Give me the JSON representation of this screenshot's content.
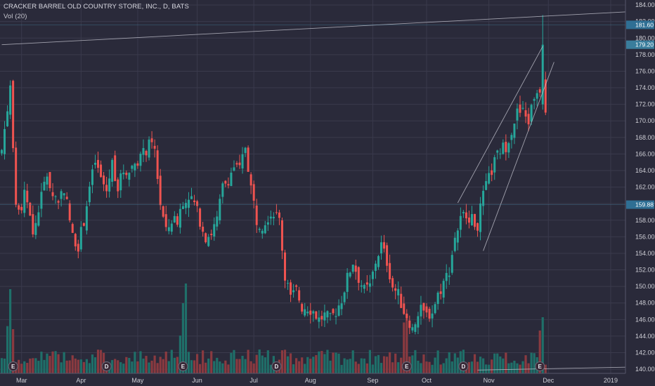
{
  "header": {
    "title": "CRACKER BARREL OLD COUNTRY STORE, INC., D, BATS",
    "volume_indicator": "Vol (20)"
  },
  "colors": {
    "background": "#2a2a3a",
    "up": "#26a69a",
    "down": "#ef5350",
    "up_volume": "#1f6f69",
    "down_volume": "#8a3a40",
    "grid": "#3a3a4c",
    "trendline": "#c9c9d4",
    "tag_up": "#3a7d9c",
    "tag_mid": "#2f6f94"
  },
  "chart_data": {
    "type": "candlestick",
    "ylim": [
      139.5,
      184.6
    ],
    "y_ticks": [
      "140.00",
      "142.00",
      "144.00",
      "146.00",
      "148.00",
      "150.00",
      "152.00",
      "154.00",
      "156.00",
      "158.00",
      "160.00",
      "162.00",
      "164.00",
      "166.00",
      "168.00",
      "170.00",
      "172.00",
      "174.00",
      "176.00",
      "178.00",
      "180.00",
      "182.00",
      "184.00"
    ],
    "x_ticks": [
      {
        "label": "Mar",
        "bar": 7
      },
      {
        "label": "Apr",
        "bar": 28
      },
      {
        "label": "May",
        "bar": 48
      },
      {
        "label": "Jun",
        "bar": 69
      },
      {
        "label": "Jul",
        "bar": 89
      },
      {
        "label": "Aug",
        "bar": 109
      },
      {
        "label": "Sep",
        "bar": 131
      },
      {
        "label": "Oct",
        "bar": 150
      },
      {
        "label": "Nov",
        "bar": 172
      },
      {
        "label": "Dec",
        "bar": 193
      },
      {
        "label": "2019",
        "bar": 215
      }
    ],
    "price_tags": [
      {
        "label": "181.60",
        "price": 181.6,
        "kind": "upper_line"
      },
      {
        "label": "179.20",
        "price": 179.2,
        "kind": "last"
      },
      {
        "label": "159.88",
        "price": 159.88,
        "kind": "mid_line"
      }
    ],
    "events": [
      {
        "label": "E",
        "bar": 4
      },
      {
        "label": "D",
        "bar": 37
      },
      {
        "label": "E",
        "bar": 64
      },
      {
        "label": "D",
        "bar": 97
      },
      {
        "label": "E",
        "bar": 143
      },
      {
        "label": "D",
        "bar": 163
      },
      {
        "label": "E",
        "bar": 190
      }
    ],
    "channel_lines": [
      {
        "from": {
          "bar": 0,
          "price": 179.2
        },
        "to": {
          "bar": 228,
          "price": 183.3
        }
      },
      {
        "from": {
          "bar": 168,
          "price": 139.9
        },
        "to": {
          "bar": 228,
          "price": 140.3
        }
      },
      {
        "from": {
          "bar": 161,
          "price": 160.1
        },
        "to": {
          "bar": 191,
          "price": 179.0
        }
      },
      {
        "from": {
          "bar": 170,
          "price": 154.3
        },
        "to": {
          "bar": 195,
          "price": 177.1
        }
      }
    ],
    "anchors": [
      [
        0,
        166.5
      ],
      [
        2,
        171.5
      ],
      [
        3,
        174
      ],
      [
        4,
        166
      ],
      [
        5,
        160
      ],
      [
        6,
        158.5
      ],
      [
        8,
        161
      ],
      [
        10,
        159
      ],
      [
        11,
        156
      ],
      [
        14,
        161
      ],
      [
        16,
        163.5
      ],
      [
        18,
        161
      ],
      [
        20,
        160.5
      ],
      [
        22,
        162
      ],
      [
        25,
        156
      ],
      [
        27,
        155
      ],
      [
        29,
        158
      ],
      [
        31,
        162
      ],
      [
        33,
        165
      ],
      [
        35,
        163
      ],
      [
        37,
        161.5
      ],
      [
        39,
        165
      ],
      [
        41,
        162
      ],
      [
        43,
        164
      ],
      [
        45,
        164
      ],
      [
        47,
        165
      ],
      [
        50,
        166
      ],
      [
        52,
        167
      ],
      [
        54,
        166.5
      ],
      [
        56,
        160
      ],
      [
        58,
        156.5
      ],
      [
        60,
        158
      ],
      [
        62,
        158
      ],
      [
        64,
        160.5
      ],
      [
        66,
        161
      ],
      [
        68,
        160
      ],
      [
        70,
        158
      ],
      [
        72,
        156
      ],
      [
        74,
        156.5
      ],
      [
        76,
        158
      ],
      [
        78,
        162
      ],
      [
        80,
        163
      ],
      [
        82,
        164.5
      ],
      [
        84,
        164
      ],
      [
        86,
        167
      ],
      [
        88,
        162
      ],
      [
        90,
        158
      ],
      [
        92,
        157.5
      ],
      [
        94,
        158.5
      ],
      [
        96,
        159
      ],
      [
        98,
        158
      ],
      [
        99,
        154.5
      ],
      [
        100,
        151.5
      ],
      [
        102,
        148.5
      ],
      [
        104,
        149.5
      ],
      [
        106,
        147.5
      ],
      [
        108,
        147.5
      ],
      [
        110,
        147
      ],
      [
        112,
        146
      ],
      [
        114,
        146.5
      ],
      [
        116,
        146
      ],
      [
        118,
        147
      ],
      [
        120,
        148.5
      ],
      [
        122,
        151
      ],
      [
        124,
        153
      ],
      [
        126,
        151
      ],
      [
        128,
        149.5
      ],
      [
        130,
        150
      ],
      [
        132,
        153
      ],
      [
        134,
        155
      ],
      [
        136,
        153
      ],
      [
        138,
        150
      ],
      [
        140,
        149
      ],
      [
        142,
        147
      ],
      [
        144,
        145
      ],
      [
        146,
        146
      ],
      [
        148,
        147
      ],
      [
        150,
        146.5
      ],
      [
        152,
        147
      ],
      [
        154,
        149
      ],
      [
        156,
        150.5
      ],
      [
        158,
        152
      ],
      [
        160,
        156
      ],
      [
        162,
        158
      ],
      [
        164,
        159
      ],
      [
        166,
        158
      ],
      [
        168,
        157.5
      ],
      [
        170,
        161
      ],
      [
        172,
        163
      ],
      [
        174,
        165
      ],
      [
        176,
        166.5
      ],
      [
        178,
        167
      ],
      [
        180,
        169
      ],
      [
        182,
        171
      ],
      [
        184,
        171
      ],
      [
        186,
        170
      ],
      [
        188,
        173
      ],
      [
        190,
        174
      ],
      [
        191,
        181.6
      ],
      [
        192,
        172
      ]
    ],
    "last_bar": 192,
    "volume_max_px": 155
  }
}
